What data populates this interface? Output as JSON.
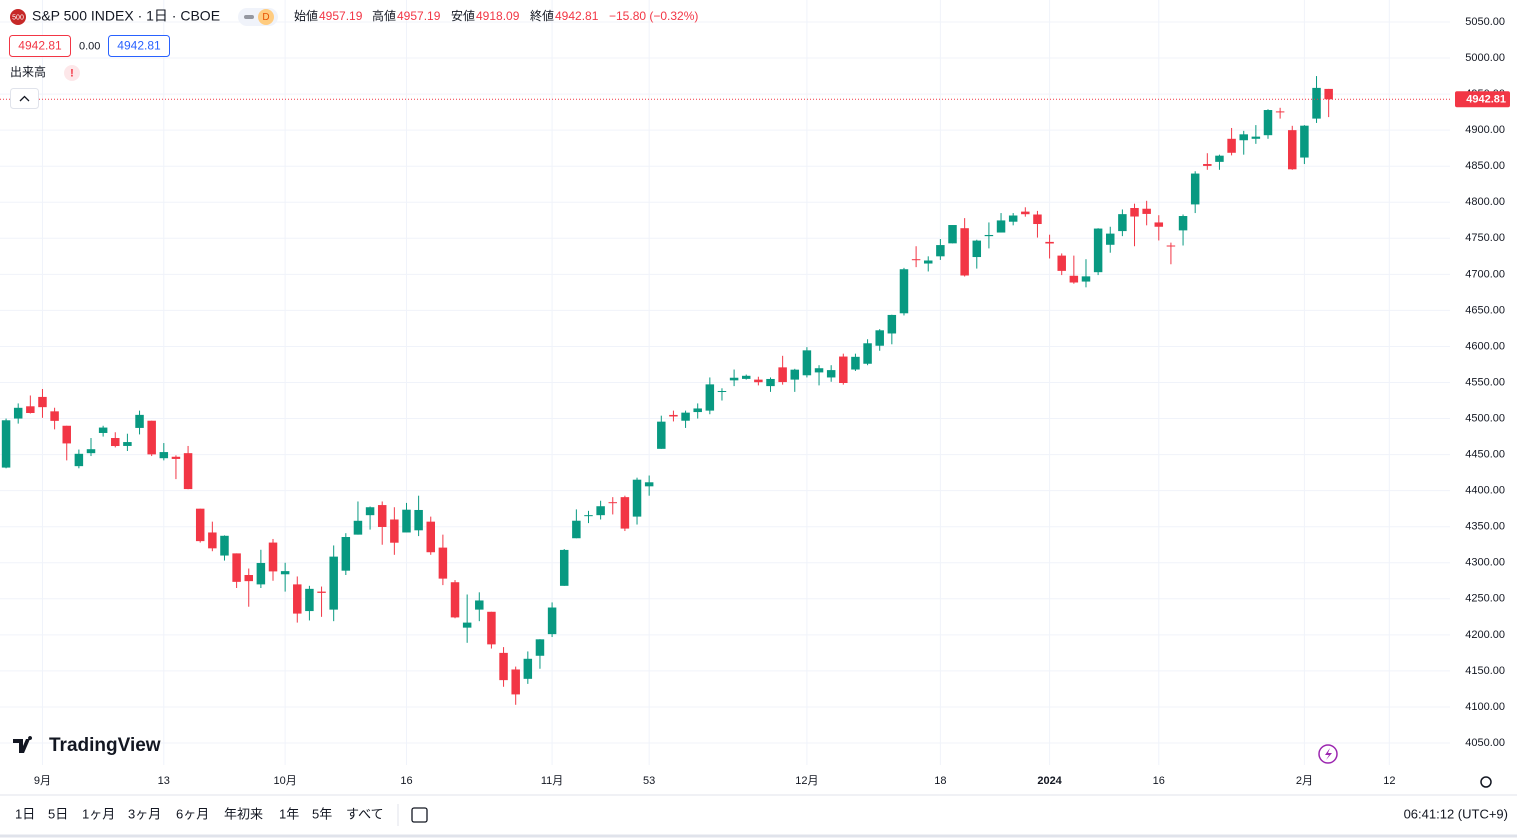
{
  "header": {
    "icon": "500",
    "interval": "D",
    "open_label": "始値",
    "high_label": "高値",
    "low_label": "安値",
    "close_label": "終値",
    "change": "−15.80 (−0.32%)",
    "volume_value": "0.00",
    "volume_label": "出来高",
    "alert": "!",
    "logo": "TradingView"
  },
  "toolbar": {
    "ranges": [
      "1日",
      "5日",
      "1ヶ月",
      "3ヶ月",
      "6ヶ月",
      "年初来",
      "1年",
      "5年",
      "すべて"
    ],
    "time": "06:41:12 (UTC+9)"
  },
  "chart_data": {
    "type": "candlestick",
    "title": "S&P 500 INDEX · 1日 · CBOE",
    "up_color": "#089981",
    "down_color": "#f23645",
    "grid": true,
    "open": [
      4432,
      4500,
      4517,
      4530,
      4510,
      4490,
      4434,
      4452,
      4480,
      4473,
      4462,
      4487,
      4497,
      4445,
      4447,
      4452,
      4375,
      4342,
      4310,
      4313,
      4283,
      4270,
      4328,
      4284,
      4270,
      4233,
      4260,
      4235,
      4289,
      4339,
      4366,
      4380,
      4360,
      4342,
      4345,
      4357,
      4321,
      4273,
      4210,
      4235,
      4232,
      4175,
      4152,
      4139,
      4171,
      4201,
      4268,
      4334,
      4365,
      4366,
      4384,
      4391,
      4364,
      4406,
      4458,
      4505,
      4497,
      4509,
      4511,
      4538,
      4553,
      4555,
      4554,
      4545,
      4571,
      4554,
      4560,
      4564,
      4557,
      4586,
      4568,
      4576,
      4601,
      4618,
      4646,
      4721,
      4715,
      4725,
      4743,
      4764,
      4724,
      4753,
      4758,
      4773,
      4787,
      4783,
      4745,
      4726,
      4698,
      4690,
      4703,
      4741,
      4760,
      4792,
      4791,
      4772,
      4740,
      4761,
      4797,
      4853,
      4856,
      4888,
      4886,
      4888,
      4893,
      4926,
      4900,
      4862,
      4916,
      4957.19
    ],
    "high": [
      4500,
      4521,
      4532,
      4541,
      4515,
      4490,
      4457,
      4473,
      4490,
      4481,
      4479,
      4511,
      4497,
      4466,
      4449,
      4462,
      4375,
      4357,
      4338,
      4313,
      4292,
      4318,
      4333,
      4300,
      4281,
      4268,
      4267,
      4324,
      4341,
      4385,
      4378,
      4385,
      4377,
      4383,
      4393,
      4364,
      4339,
      4276,
      4256,
      4259,
      4232,
      4183,
      4156,
      4177,
      4194,
      4245,
      4319,
      4374,
      4372,
      4386,
      4391,
      4393,
      4418,
      4421,
      4504,
      4511,
      4511,
      4521,
      4557,
      4542,
      4568,
      4561,
      4558,
      4557,
      4587,
      4569,
      4599,
      4574,
      4574,
      4590,
      4590,
      4610,
      4624,
      4644,
      4709,
      4739,
      4725,
      4749,
      4768,
      4778,
      4748,
      4772,
      4785,
      4785,
      4793,
      4788,
      4755,
      4729,
      4726,
      4721,
      4764,
      4766,
      4790,
      4798,
      4802,
      4782,
      4744,
      4783,
      4843,
      4868,
      4866,
      4903,
      4899,
      4907,
      4929,
      4931,
      4906,
      4907,
      4975,
      4957.19
    ],
    "low": [
      4431,
      4493,
      4507,
      4501,
      4485,
      4442,
      4431,
      4448,
      4475,
      4460,
      4455,
      4478,
      4448,
      4442,
      4416,
      4402,
      4328,
      4316,
      4303,
      4265,
      4239,
      4265,
      4275,
      4260,
      4217,
      4220,
      4225,
      4219,
      4283,
      4339,
      4346,
      4325,
      4311,
      4342,
      4337,
      4311,
      4269,
      4223,
      4189,
      4219,
      4181,
      4128,
      4103,
      4132,
      4153,
      4197,
      4268,
      4334,
      4355,
      4360,
      4367,
      4344,
      4353,
      4393,
      4458,
      4496,
      4487,
      4500,
      4506,
      4525,
      4545,
      4554,
      4546,
      4537,
      4547,
      4537,
      4557,
      4546,
      4551,
      4547,
      4566,
      4574,
      4594,
      4603,
      4643,
      4710,
      4704,
      4720,
      4743,
      4697,
      4708,
      4736,
      4758,
      4768,
      4780,
      4751,
      4722,
      4699,
      4687,
      4682,
      4699,
      4730,
      4753,
      4739,
      4768,
      4747,
      4714,
      4740,
      4785,
      4845,
      4845,
      4865,
      4866,
      4881,
      4888,
      4916,
      4845,
      4853,
      4910,
      4918.09
    ],
    "close": [
      4497.6,
      4514.9,
      4507.7,
      4515.8,
      4496.8,
      4465.5,
      4451.1,
      4457.5,
      4487.5,
      4461.9,
      4467.4,
      4505.1,
      4450.3,
      4453.5,
      4444,
      4402.2,
      4330,
      4320,
      4337.4,
      4273.5,
      4274.5,
      4299.7,
      4288,
      4288.4,
      4229.5,
      4263.8,
      4258.2,
      4308.5,
      4335.7,
      4358.2,
      4377,
      4349.6,
      4327.8,
      4373.6,
      4373.2,
      4314.6,
      4278,
      4224.2,
      4217,
      4247.7,
      4186.8,
      4137.2,
      4117.4,
      4166.8,
      4193.8,
      4237.9,
      4317.8,
      4358.3,
      4366,
      4378.4,
      4382.8,
      4347.4,
      4415.2,
      4411.6,
      4495.7,
      4502.9,
      4508.2,
      4514,
      4547.4,
      4538.2,
      4556.6,
      4559.3,
      4550.4,
      4554.9,
      4550.6,
      4567.8,
      4594.6,
      4569.8,
      4567.2,
      4549.3,
      4585.6,
      4604.4,
      4622.4,
      4643.7,
      4707.1,
      4719.6,
      4719.2,
      4740.6,
      4768.4,
      4698.4,
      4746.8,
      4754.6,
      4774.8,
      4781.6,
      4783.4,
      4769.8,
      4742.8,
      4704.8,
      4688.7,
      4697.2,
      4763.5,
      4756.5,
      4783.5,
      4780.2,
      4783.8,
      4766,
      4739.2,
      4780.9,
      4839.8,
      4850.4,
      4864.6,
      4868.6,
      4894.2,
      4891,
      4927.9,
      4925,
      4845.7,
      4906.2,
      4958.6,
      4942.81
    ],
    "xlim": [
      -0.5,
      119
    ],
    "xticks": [
      {
        "value": 3,
        "label": "9月"
      },
      13,
      {
        "value": 23,
        "label": "10月"
      },
      {
        "value": 33,
        "label": "16"
      },
      {
        "value": 45,
        "label": "11月"
      },
      53,
      {
        "value": 66,
        "label": "12月"
      },
      {
        "value": 77,
        "label": "18"
      },
      {
        "value": 86,
        "label": "2024"
      },
      {
        "value": 95,
        "label": "16"
      },
      {
        "value": 107,
        "label": "2月"
      },
      {
        "value": 114,
        "label": "12"
      }
    ],
    "ylim": [
      4019.5,
      5080.5
    ],
    "yticks": [
      {
        "value": 4050,
        "label": "4050.00"
      },
      {
        "value": 4100,
        "label": "4100.00"
      },
      {
        "value": 4150,
        "label": "4150.00"
      },
      {
        "value": 4200,
        "label": "4200.00"
      },
      {
        "value": 4250,
        "label": "4250.00"
      },
      {
        "value": 4300,
        "label": "4300.00"
      },
      {
        "value": 4350,
        "label": "4350.00"
      },
      {
        "value": 4400,
        "label": "4400.00"
      },
      {
        "value": 4450,
        "label": "4450.00"
      },
      {
        "value": 4500,
        "label": "4500.00"
      },
      {
        "value": 4550,
        "label": "4550.00"
      },
      {
        "value": 4600,
        "label": "4600.00"
      },
      {
        "value": 4650,
        "label": "4650.00"
      },
      {
        "value": 4700,
        "label": "4700.00"
      },
      {
        "value": 4750,
        "label": "4750.00"
      },
      {
        "value": 4800,
        "label": "4800.00"
      },
      {
        "value": 4850,
        "label": "4850.00"
      },
      {
        "value": 4900,
        "label": "4900.00"
      },
      {
        "value": 4950,
        "label": "4950.00"
      },
      {
        "value": 5000,
        "label": "5000.00"
      },
      {
        "value": 5050,
        "label": "5050.00"
      }
    ]
  }
}
